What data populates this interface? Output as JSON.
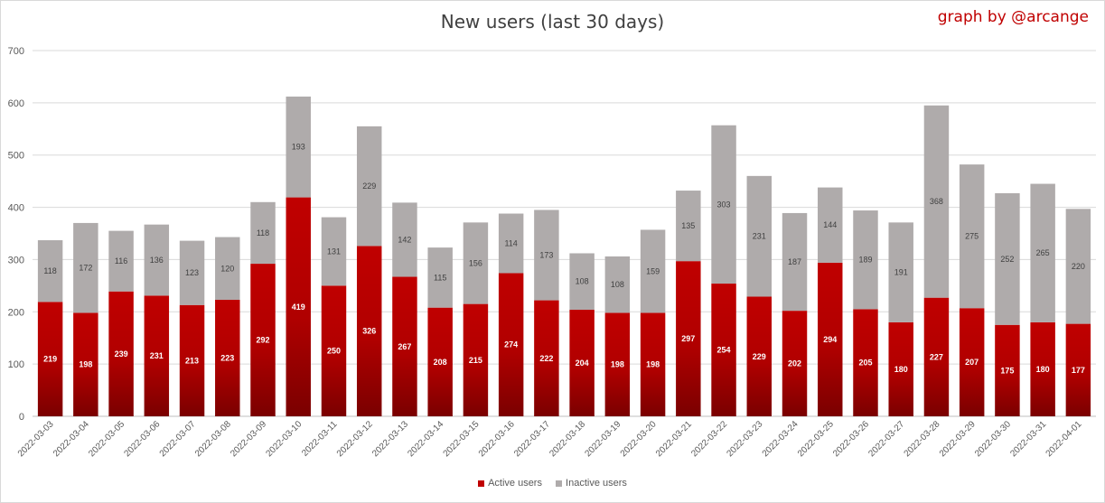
{
  "header": {
    "title": "New users (last 30 days)",
    "credit": "graph by @arcange"
  },
  "colors": {
    "active": "#c00000",
    "active_dark": "#7a0000",
    "inactive": "#afabab",
    "grid": "#d9d9d9",
    "axis": "#bfbfbf"
  },
  "chart_data": {
    "type": "bar",
    "stacked": true,
    "title": "New users (last 30 days)",
    "xlabel": "",
    "ylabel": "",
    "ylim": [
      0,
      700
    ],
    "yticks": [
      0,
      100,
      200,
      300,
      400,
      500,
      600,
      700
    ],
    "grid": true,
    "legend_position": "bottom",
    "categories": [
      "2022-03-03",
      "2022-03-04",
      "2022-03-05",
      "2022-03-06",
      "2022-03-07",
      "2022-03-08",
      "2022-03-09",
      "2022-03-10",
      "2022-03-11",
      "2022-03-12",
      "2022-03-13",
      "2022-03-14",
      "2022-03-15",
      "2022-03-16",
      "2022-03-17",
      "2022-03-18",
      "2022-03-19",
      "2022-03-20",
      "2022-03-21",
      "2022-03-22",
      "2022-03-23",
      "2022-03-24",
      "2022-03-25",
      "2022-03-26",
      "2022-03-27",
      "2022-03-28",
      "2022-03-29",
      "2022-03-30",
      "2022-03-31",
      "2022-04-01"
    ],
    "series": [
      {
        "name": "Active users",
        "values": [
          219,
          198,
          239,
          231,
          213,
          223,
          292,
          419,
          250,
          326,
          267,
          208,
          215,
          274,
          222,
          204,
          198,
          198,
          297,
          254,
          229,
          202,
          294,
          205,
          180,
          227,
          207,
          175,
          180,
          177
        ]
      },
      {
        "name": "Inactive users",
        "values": [
          118,
          172,
          116,
          136,
          123,
          120,
          118,
          193,
          131,
          229,
          142,
          115,
          156,
          114,
          173,
          108,
          108,
          159,
          135,
          303,
          231,
          187,
          144,
          189,
          191,
          368,
          275,
          252,
          265,
          220
        ]
      }
    ]
  }
}
